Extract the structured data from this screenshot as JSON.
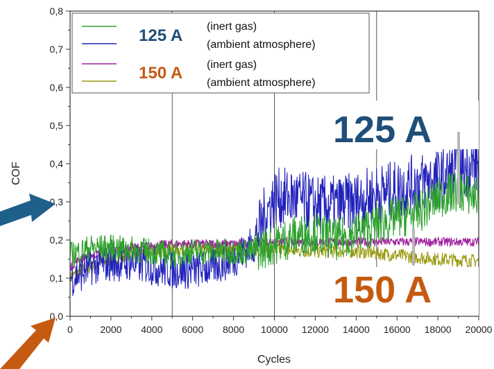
{
  "chart_data": {
    "type": "line",
    "xlabel": "Cycles",
    "ylabel": "COF",
    "xlim": [
      0,
      20000
    ],
    "ylim": [
      0,
      0.8
    ],
    "x_ticks": [
      "0",
      "2000",
      "4000",
      "6000",
      "8000",
      "10000",
      "12000",
      "14000",
      "16000",
      "18000",
      "20000"
    ],
    "y_ticks": [
      "0,0",
      "0,1",
      "0,2",
      "0,3",
      "0,4",
      "0,5",
      "0,6",
      "0,7",
      "0,8"
    ],
    "vertical_lines_x": [
      5000,
      10000,
      15000
    ],
    "legend_position": "top-left",
    "legend_groups": [
      {
        "label": "125 A",
        "color": "#1f4e79"
      },
      {
        "label": "150 A",
        "color": "#c55a11"
      }
    ],
    "series": [
      {
        "name": "(inert gas)",
        "group": "125 A",
        "color": "#2ca02c",
        "x": [
          0,
          500,
          1000,
          2000,
          3000,
          4000,
          5000,
          6000,
          7000,
          8000,
          9000,
          10000,
          11000,
          12000,
          13000,
          14000,
          15000,
          16000,
          17000,
          18000,
          19000,
          20000
        ],
        "y": [
          0.16,
          0.17,
          0.18,
          0.18,
          0.175,
          0.17,
          0.16,
          0.17,
          0.17,
          0.17,
          0.17,
          0.19,
          0.21,
          0.22,
          0.2,
          0.22,
          0.24,
          0.26,
          0.27,
          0.31,
          0.33,
          0.31
        ]
      },
      {
        "name": "(ambient atmosphere)",
        "group": "125 A",
        "color": "#2222bb",
        "x": [
          0,
          500,
          1000,
          2000,
          3000,
          4000,
          5000,
          6000,
          7000,
          8000,
          9000,
          9500,
          10000,
          11000,
          12000,
          13000,
          14000,
          15000,
          16000,
          17000,
          18000,
          19000,
          20000
        ],
        "y": [
          0.1,
          0.11,
          0.13,
          0.14,
          0.14,
          0.13,
          0.12,
          0.12,
          0.13,
          0.15,
          0.19,
          0.26,
          0.31,
          0.31,
          0.29,
          0.29,
          0.3,
          0.32,
          0.33,
          0.35,
          0.36,
          0.38,
          0.4
        ]
      },
      {
        "name": "(inert gas)",
        "group": "150 A",
        "color": "#a020a0",
        "x": [
          0,
          500,
          1000,
          2000,
          3000,
          4000,
          5000,
          6000,
          8000,
          10000,
          12000,
          14000,
          16000,
          18000,
          20000
        ],
        "y": [
          0.13,
          0.15,
          0.16,
          0.17,
          0.18,
          0.185,
          0.19,
          0.19,
          0.19,
          0.195,
          0.195,
          0.195,
          0.195,
          0.195,
          0.195
        ]
      },
      {
        "name": "(ambient atmosphere)",
        "group": "150 A",
        "color": "#9a9a10",
        "x": [
          0,
          500,
          1000,
          2000,
          3000,
          4000,
          5000,
          6000,
          8000,
          10000,
          12000,
          14000,
          16000,
          18000,
          20000
        ],
        "y": [
          0.1,
          0.12,
          0.13,
          0.15,
          0.165,
          0.17,
          0.175,
          0.175,
          0.175,
          0.175,
          0.17,
          0.17,
          0.16,
          0.15,
          0.145
        ]
      }
    ],
    "annotations": [
      {
        "text": "125 A",
        "color": "#1f4e79"
      },
      {
        "text": "150 A",
        "color": "#c55a11"
      }
    ]
  }
}
